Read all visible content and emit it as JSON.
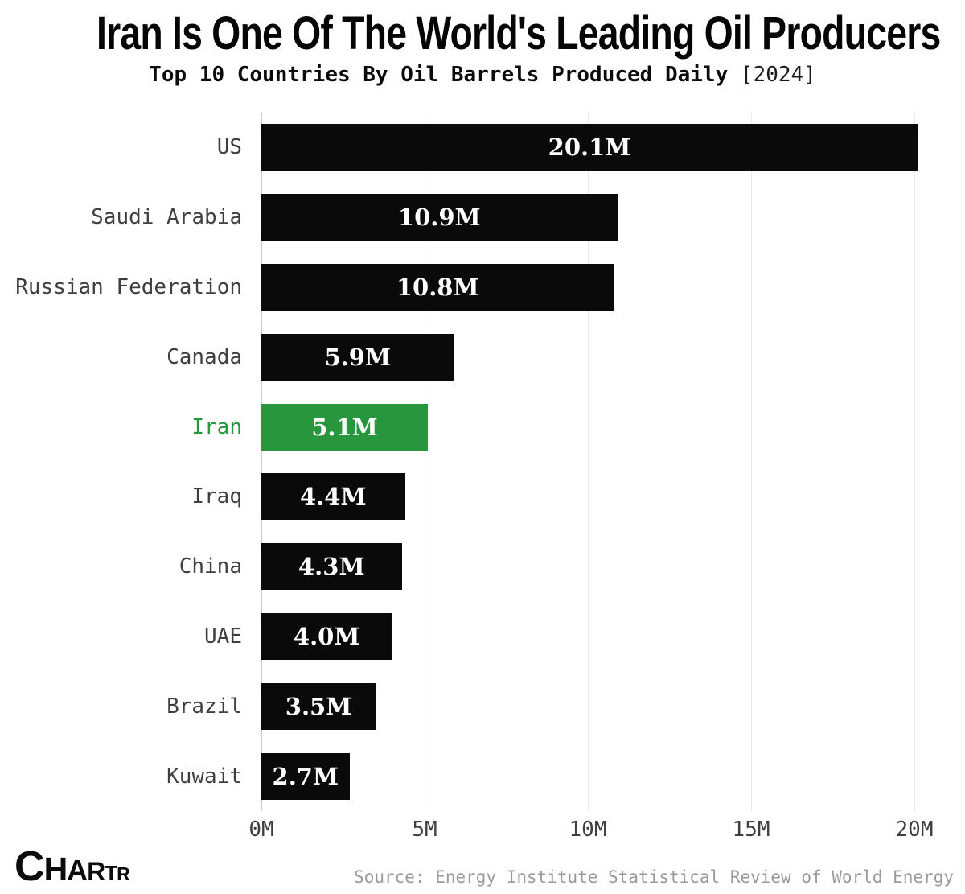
{
  "header": {
    "title": "Iran Is One Of The World's Leading Oil Producers",
    "subtitle": "Top 10 Countries By Oil Barrels Produced Daily",
    "year_tag": "[2024]"
  },
  "chart_data": {
    "type": "bar",
    "orientation": "horizontal",
    "title": "Iran Is One Of The World's Leading Oil Producers",
    "subtitle": "Top 10 Countries By Oil Barrels Produced Daily [2024]",
    "categories": [
      "US",
      "Saudi Arabia",
      "Russian Federation",
      "Canada",
      "Iran",
      "Iraq",
      "China",
      "UAE",
      "Brazil",
      "Kuwait"
    ],
    "values": [
      20.1,
      10.9,
      10.8,
      5.9,
      5.1,
      4.4,
      4.3,
      4.0,
      3.5,
      2.7
    ],
    "value_labels": [
      "20.1M",
      "10.9M",
      "10.8M",
      "5.9M",
      "5.1M",
      "4.4M",
      "4.3M",
      "4.0M",
      "3.5M",
      "2.7M"
    ],
    "xlim": [
      0,
      20
    ],
    "x_ticks": [
      "0M",
      "5M",
      "10M",
      "15M",
      "20M"
    ],
    "x_tick_values": [
      0,
      5,
      10,
      15,
      20
    ],
    "highlight_category": "Iran",
    "bar_color": "#0a0a0a",
    "highlight_color": "#28963c",
    "label_color": "#3f3f3f",
    "grid": true,
    "legend": false
  },
  "footer": {
    "logo_letters": [
      "C",
      "H",
      "A",
      "R",
      "T",
      "R"
    ],
    "source": "Source: Energy Institute Statistical Review of World Energy"
  }
}
